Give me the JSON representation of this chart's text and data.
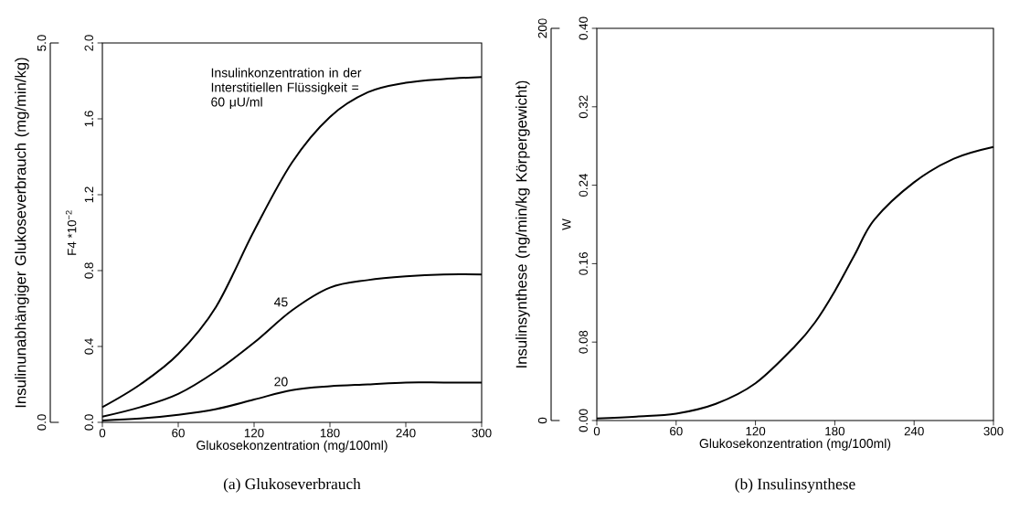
{
  "chart_data": [
    {
      "type": "line",
      "title": "(a) Glukoseverbrauch",
      "xlabel": "Glukosekonzentration (mg/100ml)",
      "ylabel": "F4 *10$^{−2}$",
      "y2label": "Insulinunabhängiger Glukoseverbrauch (mg/min/kg)",
      "x": [
        0,
        30,
        60,
        90,
        120,
        150,
        180,
        210,
        240,
        270,
        300
      ],
      "series": [
        {
          "name": "Insulinkonzentration in der Interstitiellen Flüssigkeit = 60 μU/ml",
          "color": "#000000",
          "values": [
            0.08,
            0.2,
            0.36,
            0.61,
            1.01,
            1.37,
            1.61,
            1.74,
            1.79,
            1.81,
            1.82
          ]
        },
        {
          "name": "45",
          "color": "#000000",
          "values": [
            0.03,
            0.08,
            0.15,
            0.27,
            0.42,
            0.59,
            0.71,
            0.75,
            0.77,
            0.78,
            0.78
          ]
        },
        {
          "name": "20",
          "color": "#000000",
          "values": [
            0.01,
            0.02,
            0.04,
            0.07,
            0.12,
            0.17,
            0.19,
            0.2,
            0.21,
            0.21,
            0.21
          ]
        }
      ],
      "xlim": [
        0,
        300
      ],
      "xticks": [
        0,
        60,
        120,
        180,
        240,
        300
      ],
      "ylim": [
        0,
        2
      ],
      "yticks": [
        {
          "value": 0,
          "label": "0.0"
        },
        0.4,
        0.8,
        1.2,
        1.6,
        {
          "value": 2,
          "label": "2.0"
        }
      ],
      "y2lim": [
        0,
        5
      ],
      "y2ticks": [
        {
          "value": 0,
          "label": "0.0"
        },
        {
          "value": 5,
          "label": "5.0"
        }
      ]
    },
    {
      "type": "line",
      "title": "(b) Insulinsynthese",
      "xlabel": "Glukosekonzentration (mg/100ml)",
      "ylabel": "W",
      "y2label": "Insulinsynthese (ng/min/kg Körpergewicht)",
      "x": [
        0,
        30,
        60,
        90,
        120,
        150,
        165,
        180,
        195,
        210,
        240,
        270,
        300
      ],
      "series": [
        {
          "color": "#000000",
          "values": [
            0.002,
            0.004,
            0.007,
            0.017,
            0.038,
            0.076,
            0.1,
            0.132,
            0.169,
            0.205,
            0.243,
            0.267,
            0.279
          ]
        }
      ],
      "xlim": [
        0,
        300
      ],
      "xticks": [
        0,
        60,
        120,
        180,
        240,
        300
      ],
      "ylim": [
        0,
        0.4
      ],
      "yticks": [
        {
          "value": 0,
          "label": "0.00"
        },
        0.08,
        0.16,
        0.24,
        0.32,
        {
          "value": 0.4,
          "label": "0.40"
        }
      ],
      "y2lim": [
        0,
        200
      ],
      "y2ticks": [
        0,
        200
      ]
    }
  ]
}
